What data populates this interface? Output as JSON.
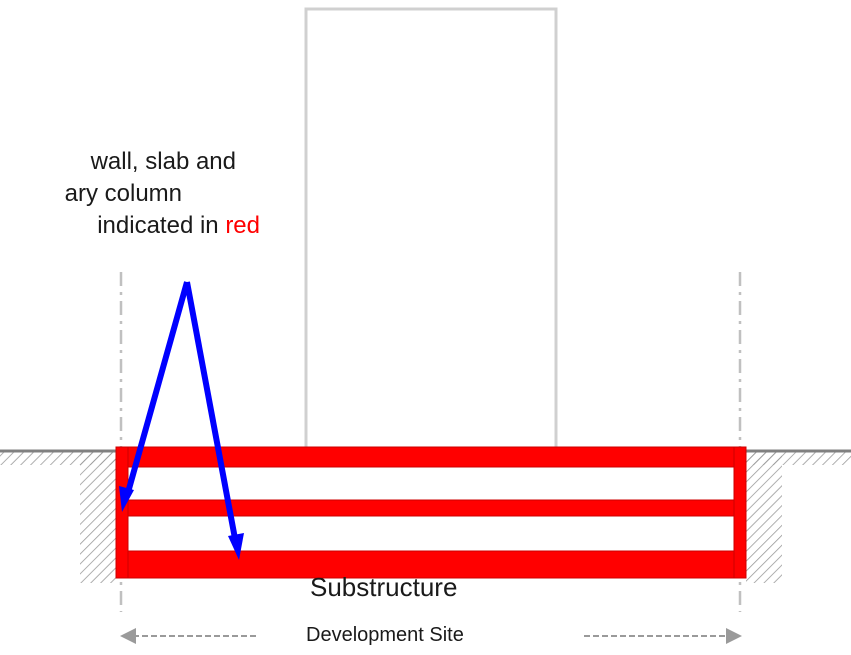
{
  "annotation": {
    "line1": "wall, slab and",
    "line2": "ary column",
    "line3_prefix": "indicated in",
    "line3_highlight": "red"
  },
  "labels": {
    "substructure": "Substructure",
    "development_site": "Development Site"
  },
  "colors": {
    "structure": "#ff0000",
    "arrow": "#0000ff",
    "outline": "#d0d0d0",
    "ground": "#808080"
  }
}
